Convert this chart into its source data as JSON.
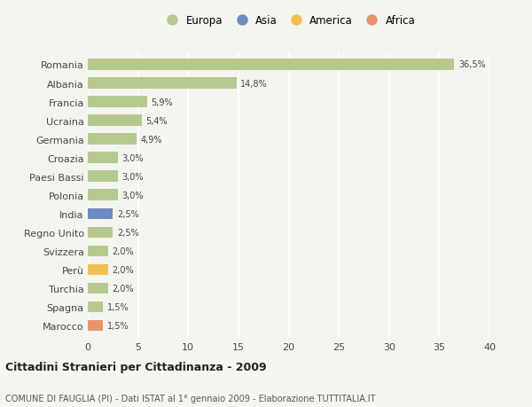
{
  "countries": [
    "Romania",
    "Albania",
    "Francia",
    "Ucraina",
    "Germania",
    "Croazia",
    "Paesi Bassi",
    "Polonia",
    "India",
    "Regno Unito",
    "Svizzera",
    "Perù",
    "Turchia",
    "Spagna",
    "Marocco"
  ],
  "values": [
    36.5,
    14.8,
    5.9,
    5.4,
    4.9,
    3.0,
    3.0,
    3.0,
    2.5,
    2.5,
    2.0,
    2.0,
    2.0,
    1.5,
    1.5
  ],
  "labels": [
    "36,5%",
    "14,8%",
    "5,9%",
    "5,4%",
    "4,9%",
    "3,0%",
    "3,0%",
    "3,0%",
    "2,5%",
    "2,5%",
    "2,0%",
    "2,0%",
    "2,0%",
    "1,5%",
    "1,5%"
  ],
  "continents": [
    "Europa",
    "Europa",
    "Europa",
    "Europa",
    "Europa",
    "Europa",
    "Europa",
    "Europa",
    "Asia",
    "Europa",
    "Europa",
    "America",
    "Europa",
    "Europa",
    "Africa"
  ],
  "colors": {
    "Europa": "#b5c98e",
    "Asia": "#6b8cbf",
    "America": "#f0c050",
    "Africa": "#e8956d"
  },
  "xlim": [
    0,
    40
  ],
  "xticks": [
    0,
    5,
    10,
    15,
    20,
    25,
    30,
    35,
    40
  ],
  "title": "Cittadini Stranieri per Cittadinanza - 2009",
  "subtitle": "COMUNE DI FAUGLIA (PI) - Dati ISTAT al 1° gennaio 2009 - Elaborazione TUTTITALIA.IT",
  "background_color": "#f5f5f0",
  "grid_color": "#ffffff",
  "bar_height": 0.6,
  "legend_labels": [
    "Europa",
    "Asia",
    "America",
    "Africa"
  ]
}
